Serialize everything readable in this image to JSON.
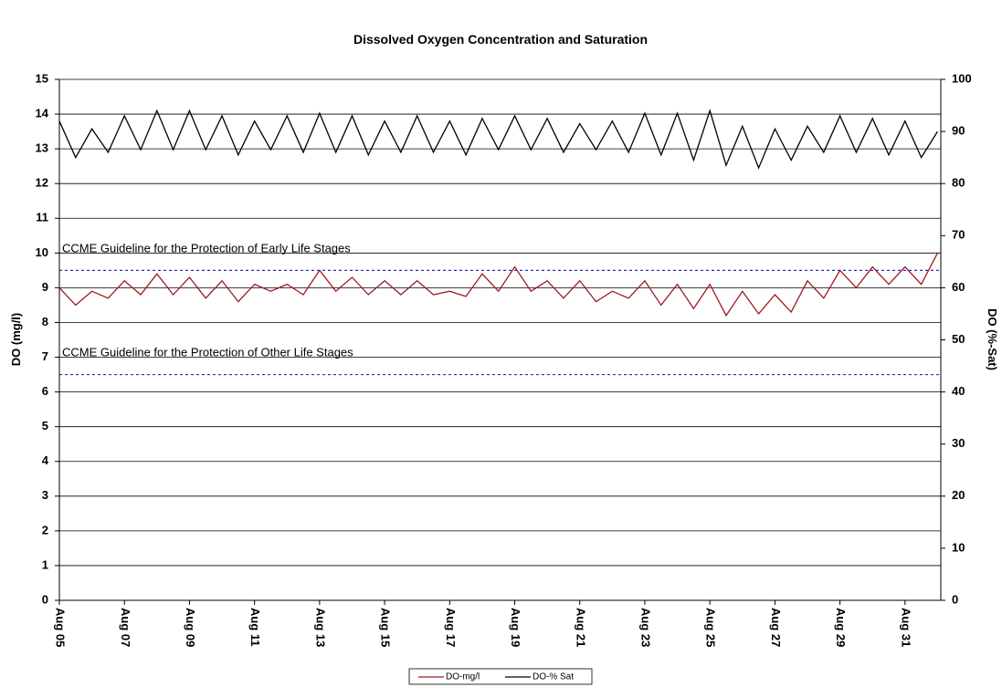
{
  "chart_data": {
    "type": "line",
    "title": "Dissolved Oxygen Concentration and Saturation",
    "y_label": "DO (mg/l)",
    "y2_label": "DO (%-Sat)",
    "x": [
      5,
      5.5,
      6,
      6.5,
      7,
      7.5,
      8,
      8.5,
      9,
      9.5,
      10,
      10.5,
      11,
      11.5,
      12,
      12.5,
      13,
      13.5,
      14,
      14.5,
      15,
      15.5,
      16,
      16.5,
      17,
      17.5,
      18,
      18.5,
      19,
      19.5,
      20,
      20.5,
      21,
      21.5,
      22,
      22.5,
      23,
      23.5,
      24,
      24.5,
      25,
      25.5,
      26,
      26.5,
      27,
      27.5,
      28,
      28.5,
      29,
      29.5,
      30,
      30.5,
      31,
      31.5,
      32
    ],
    "xlim": [
      5,
      32.1
    ],
    "xticks": [
      {
        "value": 5,
        "label": "Aug 05"
      },
      {
        "value": 7,
        "label": "Aug 07"
      },
      {
        "value": 9,
        "label": "Aug 09"
      },
      {
        "value": 11,
        "label": "Aug 11"
      },
      {
        "value": 13,
        "label": "Aug 13"
      },
      {
        "value": 15,
        "label": "Aug 15"
      },
      {
        "value": 17,
        "label": "Aug 17"
      },
      {
        "value": 19,
        "label": "Aug 19"
      },
      {
        "value": 21,
        "label": "Aug 21"
      },
      {
        "value": 23,
        "label": "Aug 23"
      },
      {
        "value": 25,
        "label": "Aug 25"
      },
      {
        "value": 27,
        "label": "Aug 27"
      },
      {
        "value": 29,
        "label": "Aug 29"
      },
      {
        "value": 31,
        "label": "Aug 31"
      }
    ],
    "ylim": [
      0,
      15
    ],
    "yticks": [
      0,
      1,
      2,
      3,
      4,
      5,
      6,
      7,
      8,
      9,
      10,
      11,
      12,
      13,
      14,
      15
    ],
    "y2lim": [
      0,
      100
    ],
    "y2ticks": [
      0,
      10,
      20,
      30,
      40,
      50,
      60,
      70,
      80,
      90,
      100
    ],
    "grid": true,
    "series": [
      {
        "name": "DO-mg/l",
        "color": "#a0191e",
        "values": [
          9.0,
          8.5,
          8.9,
          8.7,
          9.2,
          8.8,
          9.4,
          8.8,
          9.3,
          8.7,
          9.2,
          8.6,
          9.1,
          8.9,
          9.1,
          8.8,
          9.5,
          8.9,
          9.3,
          8.8,
          9.2,
          8.8,
          9.2,
          8.8,
          8.9,
          8.75,
          9.4,
          8.9,
          9.6,
          8.9,
          9.2,
          8.7,
          9.2,
          8.6,
          8.9,
          8.7,
          9.2,
          8.5,
          9.1,
          8.4,
          9.1,
          8.2,
          8.9,
          8.25,
          8.8,
          8.3,
          9.2,
          8.7,
          9.5,
          9.0,
          9.6,
          9.1,
          9.6,
          9.1,
          10.0
        ]
      },
      {
        "name": "DO-% Sat",
        "color": "#000000",
        "axis": "y2",
        "values": [
          92,
          85,
          90.5,
          86,
          93,
          86.5,
          94,
          86.5,
          94,
          86.5,
          93,
          85.5,
          92,
          86.5,
          93,
          86,
          93.5,
          86,
          93,
          85.5,
          92,
          86,
          93,
          86,
          92,
          85.5,
          92.5,
          86.5,
          93,
          86.5,
          92.5,
          86,
          91.5,
          86.5,
          92,
          86,
          93.5,
          85.5,
          93.5,
          84.5,
          94,
          83.5,
          91,
          83,
          90.5,
          84.5,
          91,
          86,
          93,
          86,
          92.5,
          85.5,
          92,
          85,
          90
        ]
      }
    ],
    "guidelines": [
      {
        "value": 9.5,
        "label": "CCME Guideline for the Protection of Early Life Stages",
        "color": "#1f2fc0"
      },
      {
        "value": 6.5,
        "label": "CCME Guideline for the Protection of Other Life Stages",
        "color": "#1f2fc0"
      }
    ]
  }
}
